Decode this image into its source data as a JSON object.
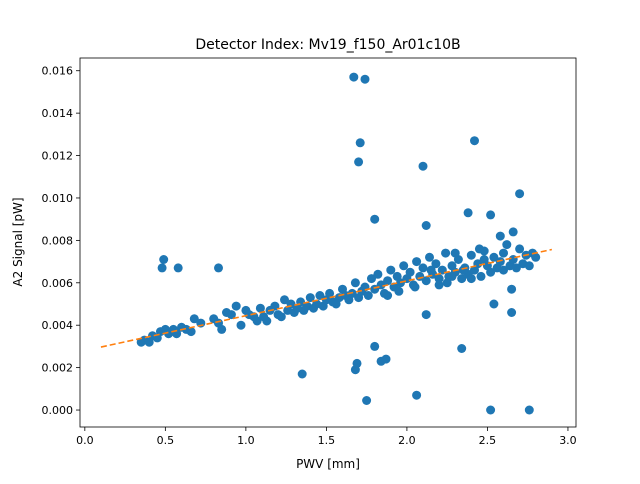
{
  "chart_data": {
    "type": "scatter",
    "title": "Detector Index: Mv19_f150_Ar01c10B",
    "xlabel": "PWV [mm]",
    "ylabel": "A2 Signal [pW]",
    "xlim": [
      -0.03,
      3.05
    ],
    "ylim": [
      -0.0008,
      0.0166
    ],
    "xticks": [
      0.0,
      0.5,
      1.0,
      1.5,
      2.0,
      2.5,
      3.0
    ],
    "xtick_labels": [
      "0.0",
      "0.5",
      "1.0",
      "1.5",
      "2.0",
      "2.5",
      "3.0"
    ],
    "yticks": [
      0.0,
      0.002,
      0.004,
      0.006,
      0.008,
      0.01,
      0.012,
      0.014,
      0.016
    ],
    "ytick_labels": [
      "0.000",
      "0.002",
      "0.004",
      "0.006",
      "0.008",
      "0.010",
      "0.012",
      "0.014",
      "0.016"
    ],
    "colors": {
      "points": "#1f77b4",
      "fit": "#ff7f0e"
    },
    "fit_line": {
      "name": "linear fit",
      "x": [
        0.1,
        2.9
      ],
      "y": [
        0.00297,
        0.00757
      ]
    },
    "series": [
      {
        "name": "A2 Signal",
        "points": [
          [
            0.35,
            0.0032
          ],
          [
            0.37,
            0.0033
          ],
          [
            0.4,
            0.0032
          ],
          [
            0.42,
            0.0035
          ],
          [
            0.45,
            0.0034
          ],
          [
            0.47,
            0.0037
          ],
          [
            0.5,
            0.0038
          ],
          [
            0.52,
            0.0036
          ],
          [
            0.55,
            0.0038
          ],
          [
            0.57,
            0.0036
          ],
          [
            0.6,
            0.0039
          ],
          [
            0.63,
            0.0038
          ],
          [
            0.66,
            0.0037
          ],
          [
            0.68,
            0.0043
          ],
          [
            0.72,
            0.0041
          ],
          [
            0.8,
            0.0043
          ],
          [
            0.83,
            0.0041
          ],
          [
            0.85,
            0.0038
          ],
          [
            0.88,
            0.0046
          ],
          [
            0.91,
            0.0045
          ],
          [
            0.94,
            0.0049
          ],
          [
            0.97,
            0.004
          ],
          [
            1.0,
            0.0047
          ],
          [
            1.02,
            0.0045
          ],
          [
            1.05,
            0.0044
          ],
          [
            1.07,
            0.0042
          ],
          [
            1.09,
            0.0048
          ],
          [
            1.11,
            0.0044
          ],
          [
            1.13,
            0.0042
          ],
          [
            1.15,
            0.0047
          ],
          [
            1.18,
            0.0049
          ],
          [
            1.2,
            0.0045
          ],
          [
            1.22,
            0.0044
          ],
          [
            1.24,
            0.0052
          ],
          [
            1.26,
            0.0047
          ],
          [
            1.28,
            0.005
          ],
          [
            1.3,
            0.0046
          ],
          [
            1.32,
            0.0048
          ],
          [
            1.34,
            0.0051
          ],
          [
            1.36,
            0.0047
          ],
          [
            1.38,
            0.0049
          ],
          [
            1.4,
            0.0053
          ],
          [
            1.42,
            0.0048
          ],
          [
            1.44,
            0.005
          ],
          [
            1.46,
            0.0054
          ],
          [
            1.48,
            0.0049
          ],
          [
            1.5,
            0.0052
          ],
          [
            1.52,
            0.0055
          ],
          [
            1.54,
            0.0051
          ],
          [
            1.56,
            0.005
          ],
          [
            1.58,
            0.0053
          ],
          [
            1.6,
            0.0057
          ],
          [
            1.62,
            0.0054
          ],
          [
            1.64,
            0.0052
          ],
          [
            1.66,
            0.0055
          ],
          [
            1.68,
            0.006
          ],
          [
            1.7,
            0.0053
          ],
          [
            1.72,
            0.0056
          ],
          [
            1.74,
            0.0058
          ],
          [
            1.76,
            0.0054
          ],
          [
            1.78,
            0.0062
          ],
          [
            1.8,
            0.0057
          ],
          [
            1.82,
            0.0064
          ],
          [
            1.84,
            0.0059
          ],
          [
            1.86,
            0.0055
          ],
          [
            1.88,
            0.0061
          ],
          [
            1.9,
            0.0066
          ],
          [
            1.92,
            0.0058
          ],
          [
            1.94,
            0.0063
          ],
          [
            1.96,
            0.006
          ],
          [
            1.98,
            0.0068
          ],
          [
            2.0,
            0.0062
          ],
          [
            2.02,
            0.0065
          ],
          [
            2.04,
            0.0059
          ],
          [
            2.06,
            0.007
          ],
          [
            2.08,
            0.0063
          ],
          [
            2.1,
            0.0067
          ],
          [
            2.12,
            0.0061
          ],
          [
            2.14,
            0.0072
          ],
          [
            2.16,
            0.0064
          ],
          [
            2.18,
            0.0069
          ],
          [
            2.2,
            0.0062
          ],
          [
            2.22,
            0.0066
          ],
          [
            2.24,
            0.0074
          ],
          [
            2.26,
            0.0063
          ],
          [
            2.28,
            0.0068
          ],
          [
            2.3,
            0.0065
          ],
          [
            2.32,
            0.0071
          ],
          [
            2.34,
            0.0062
          ],
          [
            2.36,
            0.0067
          ],
          [
            2.38,
            0.0064
          ],
          [
            2.4,
            0.0073
          ],
          [
            2.42,
            0.0066
          ],
          [
            2.44,
            0.0069
          ],
          [
            2.46,
            0.0063
          ],
          [
            2.48,
            0.0075
          ],
          [
            2.5,
            0.0068
          ],
          [
            2.52,
            0.0065
          ],
          [
            2.54,
            0.0072
          ],
          [
            2.56,
            0.0067
          ],
          [
            2.58,
            0.007
          ],
          [
            2.6,
            0.0066
          ],
          [
            2.62,
            0.0078
          ],
          [
            2.64,
            0.0068
          ],
          [
            2.66,
            0.0071
          ],
          [
            2.68,
            0.0067
          ],
          [
            2.7,
            0.0076
          ],
          [
            2.72,
            0.0069
          ],
          [
            2.74,
            0.0073
          ],
          [
            2.76,
            0.0068
          ],
          [
            2.78,
            0.0074
          ],
          [
            2.8,
            0.0072
          ],
          [
            0.48,
            0.0067
          ],
          [
            0.49,
            0.0071
          ],
          [
            0.58,
            0.0067
          ],
          [
            0.83,
            0.0067
          ],
          [
            1.67,
            0.0157
          ],
          [
            1.74,
            0.0156
          ],
          [
            1.71,
            0.0126
          ],
          [
            1.7,
            0.0117
          ],
          [
            2.42,
            0.0127
          ],
          [
            2.7,
            0.0102
          ],
          [
            2.1,
            0.0115
          ],
          [
            2.38,
            0.0093
          ],
          [
            2.52,
            0.0092
          ],
          [
            1.8,
            0.009
          ],
          [
            2.12,
            0.0087
          ],
          [
            1.35,
            0.0017
          ],
          [
            1.75,
            0.00045
          ],
          [
            1.68,
            0.0019
          ],
          [
            1.69,
            0.0022
          ],
          [
            1.8,
            0.003
          ],
          [
            1.84,
            0.0023
          ],
          [
            1.87,
            0.0024
          ],
          [
            2.06,
            0.0007
          ],
          [
            2.12,
            0.0045
          ],
          [
            2.34,
            0.0029
          ],
          [
            2.52,
            0.0
          ],
          [
            2.54,
            0.005
          ],
          [
            2.65,
            0.0046
          ],
          [
            2.65,
            0.0057
          ],
          [
            2.76,
            0.0
          ],
          [
            2.3,
            0.0074
          ],
          [
            2.45,
            0.0076
          ],
          [
            2.58,
            0.0082
          ],
          [
            2.66,
            0.0084
          ],
          [
            2.48,
            0.0071
          ],
          [
            2.6,
            0.0074
          ],
          [
            2.35,
            0.0066
          ],
          [
            2.25,
            0.006
          ],
          [
            2.05,
            0.0058
          ],
          [
            1.95,
            0.0056
          ],
          [
            1.88,
            0.0054
          ],
          [
            2.15,
            0.0066
          ],
          [
            2.2,
            0.0059
          ],
          [
            2.28,
            0.0063
          ],
          [
            2.4,
            0.0062
          ]
        ]
      }
    ]
  }
}
